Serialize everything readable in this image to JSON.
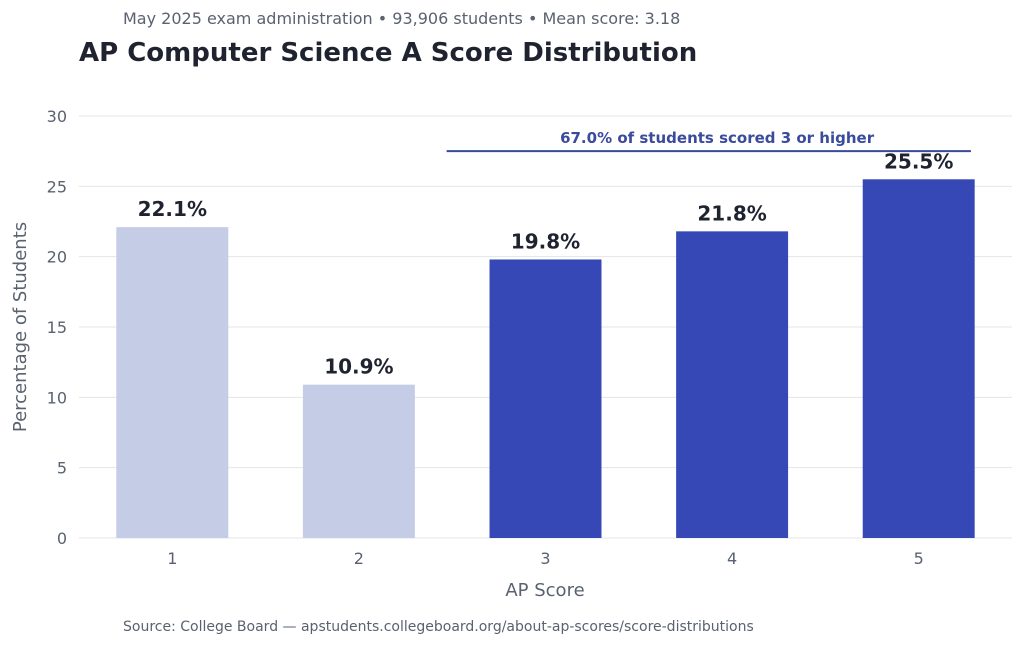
{
  "chart_data": {
    "type": "bar",
    "subtitle": "May 2025 exam administration • 93,906 students • Mean score: 3.18",
    "title": "AP Computer Science A Score Distribution",
    "xlabel": "AP Score",
    "ylabel": "Percentage of Students",
    "categories": [
      "1",
      "2",
      "3",
      "4",
      "5"
    ],
    "values": [
      22.1,
      10.9,
      19.8,
      21.8,
      25.5
    ],
    "value_labels": [
      "22.1%",
      "10.9%",
      "19.8%",
      "21.8%",
      "25.5%"
    ],
    "ylim": [
      0,
      30
    ],
    "yticks": [
      "0",
      "5",
      "10",
      "15",
      "20",
      "25",
      "30"
    ],
    "grid": true,
    "annotation": {
      "text": "67.0% of students scored 3 or higher",
      "span_categories": [
        "3",
        "5"
      ]
    },
    "source": "Source: College Board — apstudents.collegeboard.org/about-ap-scores/score-distributions",
    "colors": {
      "below_3": "#c4cce6",
      "passing": "#3548b5",
      "annotation": "#3a4a9c"
    }
  }
}
